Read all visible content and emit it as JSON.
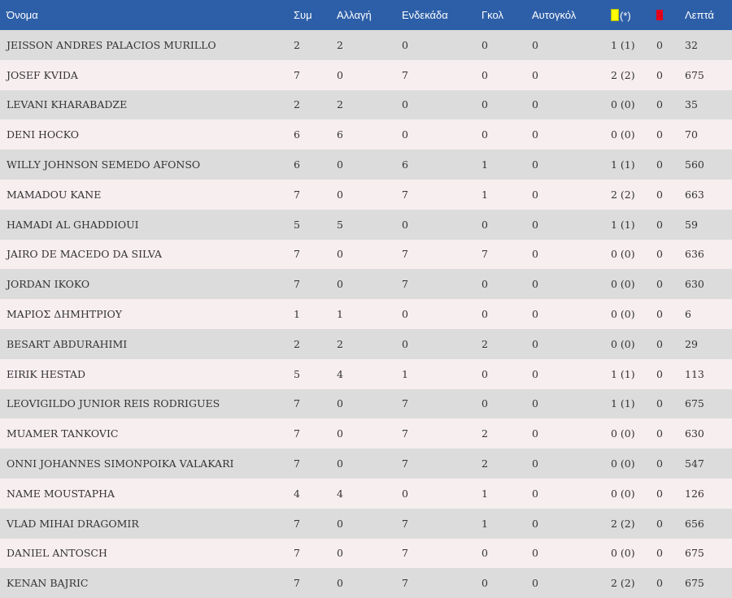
{
  "headers": {
    "name": "Όνομα",
    "apps": "Συμ",
    "sub": "Αλλαγή",
    "starting": "Ενδεκάδα",
    "goals": "Γκολ",
    "own_goals": "Αυτογκόλ",
    "yellow_suffix": "(*)",
    "minutes": "Λεπτά"
  },
  "colors": {
    "header_bg": "#2d5fa8",
    "row_odd": "#dcdcdc",
    "row_even": "#f7eef0",
    "yellow_card": "#ffff00",
    "red_card": "#e3001b"
  },
  "icons": {
    "yellow": "yellow-card-icon",
    "red": "red-card-icon"
  },
  "players": [
    {
      "name": "JEISSON ANDRES PALACIOS MURILLO",
      "apps": "2",
      "sub": "2",
      "starting": "0",
      "goals": "0",
      "own_goals": "0",
      "yellow": "1 (1)",
      "red": "0",
      "minutes": "32"
    },
    {
      "name": "JOSEF KVIDA",
      "apps": "7",
      "sub": "0",
      "starting": "7",
      "goals": "0",
      "own_goals": "0",
      "yellow": "2 (2)",
      "red": "0",
      "minutes": "675"
    },
    {
      "name": "LEVANI KHARABADZE",
      "apps": "2",
      "sub": "2",
      "starting": "0",
      "goals": "0",
      "own_goals": "0",
      "yellow": "0 (0)",
      "red": "0",
      "minutes": "35"
    },
    {
      "name": "DENI HOCKO",
      "apps": "6",
      "sub": "6",
      "starting": "0",
      "goals": "0",
      "own_goals": "0",
      "yellow": "0 (0)",
      "red": "0",
      "minutes": "70"
    },
    {
      "name": "WILLY JOHNSON SEMEDO AFONSO",
      "apps": "6",
      "sub": "0",
      "starting": "6",
      "goals": "1",
      "own_goals": "0",
      "yellow": "1 (1)",
      "red": "0",
      "minutes": "560"
    },
    {
      "name": "MAMADOU KANE",
      "apps": "7",
      "sub": "0",
      "starting": "7",
      "goals": "1",
      "own_goals": "0",
      "yellow": "2 (2)",
      "red": "0",
      "minutes": "663"
    },
    {
      "name": "HAMADI AL GHADDIOUI",
      "apps": "5",
      "sub": "5",
      "starting": "0",
      "goals": "0",
      "own_goals": "0",
      "yellow": "1 (1)",
      "red": "0",
      "minutes": "59"
    },
    {
      "name": "JAIRO DE MACEDO DA SILVA",
      "apps": "7",
      "sub": "0",
      "starting": "7",
      "goals": "7",
      "own_goals": "0",
      "yellow": "0 (0)",
      "red": "0",
      "minutes": "636"
    },
    {
      "name": "JORDAN IKOKO",
      "apps": "7",
      "sub": "0",
      "starting": "7",
      "goals": "0",
      "own_goals": "0",
      "yellow": "0 (0)",
      "red": "0",
      "minutes": "630"
    },
    {
      "name": "ΜΑΡΙΟΣ ΔΗΜΗΤΡΙΟΥ",
      "apps": "1",
      "sub": "1",
      "starting": "0",
      "goals": "0",
      "own_goals": "0",
      "yellow": "0 (0)",
      "red": "0",
      "minutes": "6"
    },
    {
      "name": "BESART ABDURAHIMI",
      "apps": "2",
      "sub": "2",
      "starting": "0",
      "goals": "2",
      "own_goals": "0",
      "yellow": "0 (0)",
      "red": "0",
      "minutes": "29"
    },
    {
      "name": "EIRIK HESTAD",
      "apps": "5",
      "sub": "4",
      "starting": "1",
      "goals": "0",
      "own_goals": "0",
      "yellow": "1 (1)",
      "red": "0",
      "minutes": "113"
    },
    {
      "name": "LEOVIGILDO JUNIOR REIS RODRIGUES",
      "apps": "7",
      "sub": "0",
      "starting": "7",
      "goals": "0",
      "own_goals": "0",
      "yellow": "1 (1)",
      "red": "0",
      "minutes": "675"
    },
    {
      "name": "MUAMER TANKOVIC",
      "apps": "7",
      "sub": "0",
      "starting": "7",
      "goals": "2",
      "own_goals": "0",
      "yellow": "0 (0)",
      "red": "0",
      "minutes": "630"
    },
    {
      "name": "ONNI JOHANNES SIMONPOIKA VALAKARI",
      "apps": "7",
      "sub": "0",
      "starting": "7",
      "goals": "2",
      "own_goals": "0",
      "yellow": "0 (0)",
      "red": "0",
      "minutes": "547"
    },
    {
      "name": "NAME MOUSTAPHA",
      "apps": "4",
      "sub": "4",
      "starting": "0",
      "goals": "1",
      "own_goals": "0",
      "yellow": "0 (0)",
      "red": "0",
      "minutes": "126"
    },
    {
      "name": "VLAD MIHAI DRAGOMIR",
      "apps": "7",
      "sub": "0",
      "starting": "7",
      "goals": "1",
      "own_goals": "0",
      "yellow": "2 (2)",
      "red": "0",
      "minutes": "656"
    },
    {
      "name": "DANIEL ANTOSCH",
      "apps": "7",
      "sub": "0",
      "starting": "7",
      "goals": "0",
      "own_goals": "0",
      "yellow": "0 (0)",
      "red": "0",
      "minutes": "675"
    },
    {
      "name": "KENAN BAJRIC",
      "apps": "7",
      "sub": "0",
      "starting": "7",
      "goals": "0",
      "own_goals": "0",
      "yellow": "2 (2)",
      "red": "0",
      "minutes": "675"
    }
  ]
}
